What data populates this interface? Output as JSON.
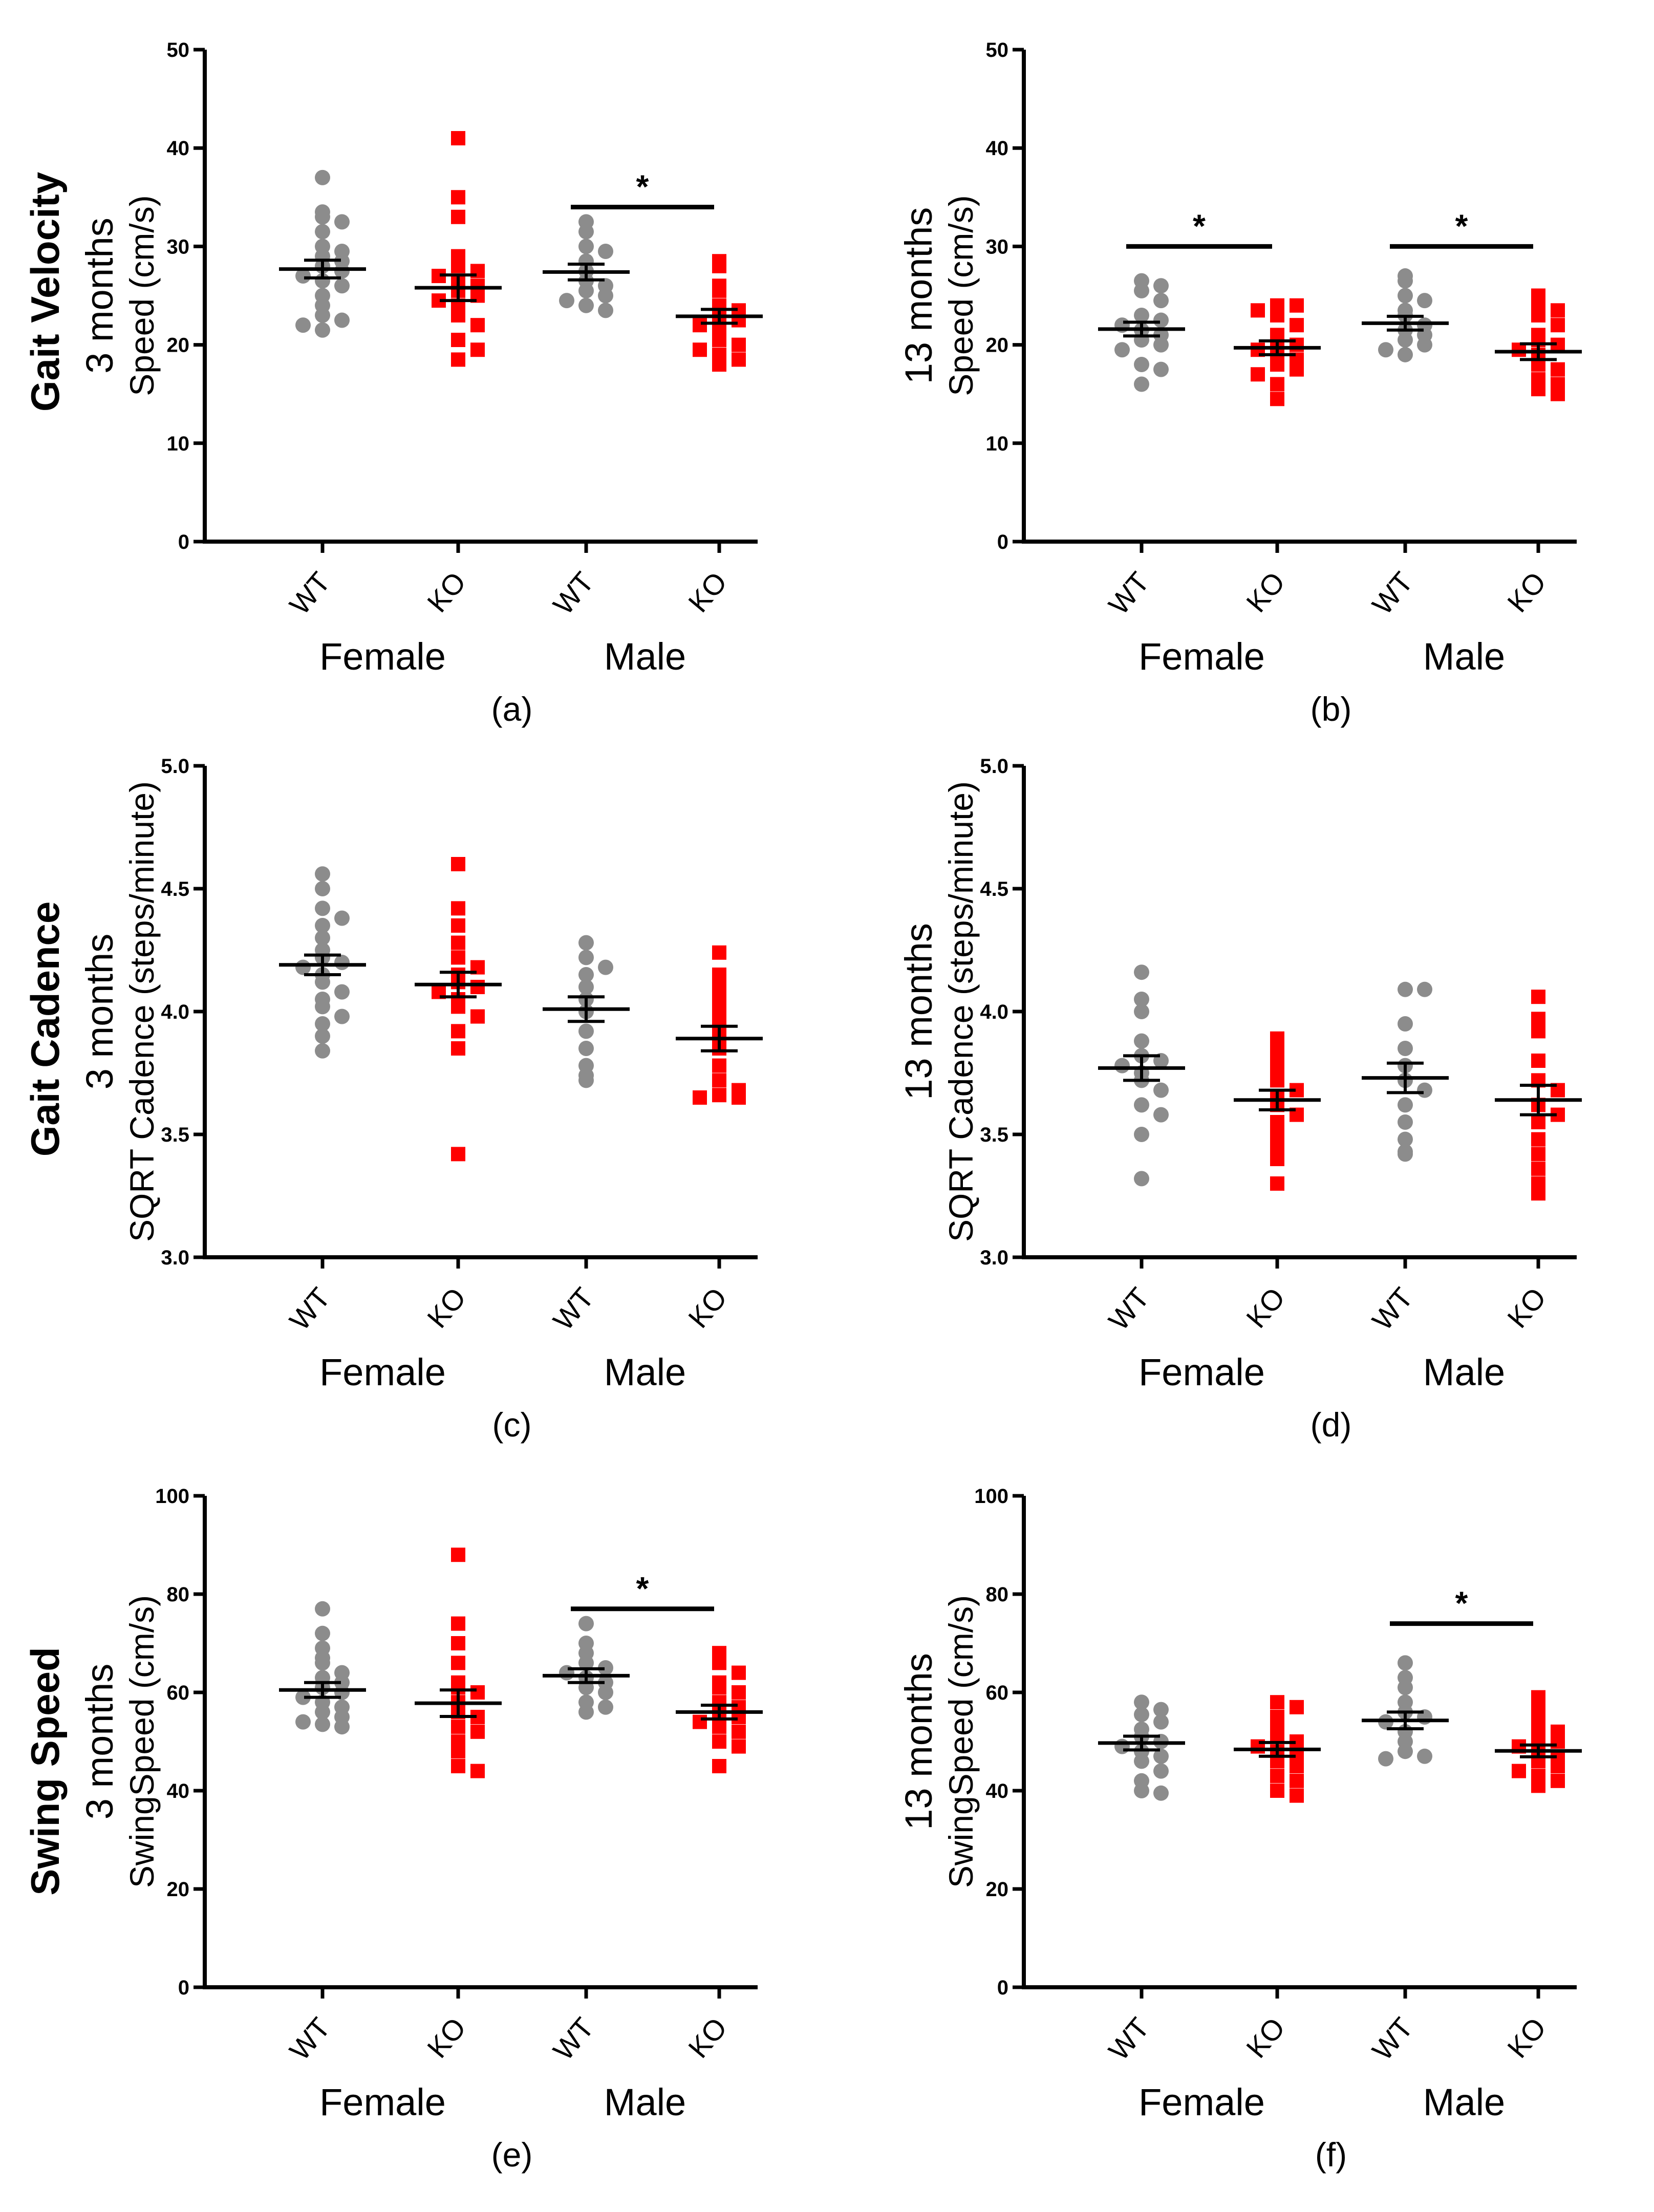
{
  "colors": {
    "wt": "#8c8c8c",
    "ko": "#ff0000",
    "axis": "#000000"
  },
  "row_titles": [
    "Gait Velocity",
    "Gait Cadence",
    "Swing Speed"
  ],
  "chart_data": [
    {
      "type": "scatter",
      "panel": "(a)",
      "row": 0,
      "col": 0,
      "title": "Gait Velocity",
      "age_label": "3 months",
      "ylabel": "Speed (cm/s)",
      "ylim": [
        0,
        50
      ],
      "yticks": [
        "0",
        "10",
        "20",
        "30",
        "40",
        "50"
      ],
      "categories": [
        "WT",
        "KO",
        "WT",
        "KO"
      ],
      "sex_labels": [
        "Female",
        "Male"
      ],
      "series": [
        {
          "name": "Female WT",
          "group": "WT",
          "mean": 27.7,
          "sem": 0.9,
          "values": [
            37.0,
            33.5,
            33.0,
            32.5,
            31.5,
            30.0,
            29.5,
            29.0,
            28.5,
            28.0,
            27.5,
            27.0,
            26.5,
            26.0,
            25.0,
            24.0,
            23.0,
            22.5,
            22.0,
            21.5
          ]
        },
        {
          "name": "Female KO",
          "group": "KO",
          "mean": 25.8,
          "sem": 1.3,
          "values": [
            41.0,
            35.0,
            33.0,
            29.0,
            28.0,
            27.5,
            27.0,
            26.5,
            26.0,
            25.5,
            25.0,
            24.5,
            24.0,
            23.0,
            22.0,
            20.5,
            19.5,
            18.5
          ]
        },
        {
          "name": "Male WT",
          "group": "WT",
          "mean": 27.4,
          "sem": 0.8,
          "values": [
            32.5,
            31.5,
            30.0,
            29.5,
            28.5,
            27.5,
            26.5,
            26.0,
            25.5,
            25.0,
            24.5,
            24.0,
            23.5
          ]
        },
        {
          "name": "Male KO",
          "group": "KO",
          "mean": 22.9,
          "sem": 0.7,
          "values": [
            28.5,
            28.0,
            26.0,
            25.5,
            24.0,
            23.5,
            23.0,
            22.5,
            22.0,
            21.5,
            20.5,
            20.0,
            19.5,
            19.0,
            18.5,
            18.0
          ]
        }
      ],
      "significance": [
        {
          "from": 2,
          "to": 3,
          "value": 34,
          "label": "*"
        }
      ]
    },
    {
      "type": "scatter",
      "panel": "(b)",
      "row": 0,
      "col": 1,
      "title": "",
      "age_label": "13 months",
      "ylabel": "Speed (cm/s)",
      "ylim": [
        0,
        50
      ],
      "yticks": [
        "0",
        "10",
        "20",
        "30",
        "40",
        "50"
      ],
      "categories": [
        "WT",
        "KO",
        "WT",
        "KO"
      ],
      "sex_labels": [
        "Female",
        "Male"
      ],
      "series": [
        {
          "name": "Female WT",
          "group": "WT",
          "mean": 21.6,
          "sem": 0.7,
          "values": [
            26.5,
            26.0,
            25.5,
            24.5,
            23.0,
            22.5,
            22.0,
            21.5,
            21.0,
            20.5,
            20.0,
            19.5,
            18.0,
            17.5,
            16.0
          ]
        },
        {
          "name": "Female KO",
          "group": "KO",
          "mean": 19.7,
          "sem": 0.7,
          "values": [
            24.0,
            24.0,
            23.5,
            23.0,
            22.0,
            21.0,
            20.5,
            20.0,
            19.5,
            19.0,
            18.5,
            18.0,
            17.5,
            17.0,
            16.0,
            14.5
          ]
        },
        {
          "name": "Male WT",
          "group": "WT",
          "mean": 22.2,
          "sem": 0.7,
          "values": [
            27.0,
            26.5,
            25.0,
            24.5,
            23.5,
            23.0,
            22.0,
            21.5,
            21.0,
            20.5,
            20.0,
            19.5,
            19.0
          ]
        },
        {
          "name": "Male KO",
          "group": "KO",
          "mean": 19.3,
          "sem": 0.8,
          "values": [
            25.0,
            24.0,
            23.5,
            23.0,
            22.0,
            21.0,
            20.5,
            20.0,
            19.5,
            19.0,
            18.0,
            17.5,
            16.5,
            16.0,
            15.5,
            15.0
          ]
        }
      ],
      "significance": [
        {
          "from": 0,
          "to": 1,
          "value": 30,
          "label": "*"
        },
        {
          "from": 2,
          "to": 3,
          "value": 30,
          "label": "*"
        }
      ]
    },
    {
      "type": "scatter",
      "panel": "(c)",
      "row": 1,
      "col": 0,
      "title": "Gait Cadence",
      "age_label": "3 months",
      "ylabel": "SQRT Cadence (steps/minute)",
      "ylim": [
        3.0,
        5.0
      ],
      "yticks": [
        "3.0",
        "3.5",
        "4.0",
        "4.5",
        "5.0"
      ],
      "categories": [
        "WT",
        "KO",
        "WT",
        "KO"
      ],
      "sex_labels": [
        "Female",
        "Male"
      ],
      "series": [
        {
          "name": "Female WT",
          "group": "WT",
          "mean": 4.19,
          "sem": 0.04,
          "values": [
            4.56,
            4.5,
            4.42,
            4.38,
            4.35,
            4.3,
            4.25,
            4.22,
            4.2,
            4.18,
            4.15,
            4.12,
            4.08,
            4.05,
            4.02,
            3.98,
            3.95,
            3.9,
            3.84
          ]
        },
        {
          "name": "Female KO",
          "group": "KO",
          "mean": 4.11,
          "sem": 0.05,
          "values": [
            4.6,
            4.42,
            4.35,
            4.28,
            4.22,
            4.18,
            4.15,
            4.12,
            4.1,
            4.08,
            4.05,
            4.02,
            3.98,
            3.92,
            3.85,
            3.42
          ]
        },
        {
          "name": "Male WT",
          "group": "WT",
          "mean": 4.01,
          "sem": 0.05,
          "values": [
            4.28,
            4.22,
            4.18,
            4.15,
            4.1,
            4.05,
            4.0,
            3.92,
            3.85,
            3.78,
            3.74,
            3.72
          ]
        },
        {
          "name": "Male KO",
          "group": "KO",
          "mean": 3.89,
          "sem": 0.05,
          "values": [
            4.24,
            4.15,
            4.1,
            4.05,
            4.0,
            3.95,
            3.9,
            3.85,
            3.78,
            3.72,
            3.68,
            3.66,
            3.65,
            3.65
          ]
        }
      ],
      "significance": []
    },
    {
      "type": "scatter",
      "panel": "(d)",
      "row": 1,
      "col": 1,
      "title": "",
      "age_label": "13 months",
      "ylabel": "SQRT Cadence (steps/minute)",
      "ylim": [
        3.0,
        5.0
      ],
      "yticks": [
        "3.0",
        "3.5",
        "4.0",
        "4.5",
        "5.0"
      ],
      "categories": [
        "WT",
        "KO",
        "WT",
        "KO"
      ],
      "sex_labels": [
        "Female",
        "Male"
      ],
      "series": [
        {
          "name": "Female WT",
          "group": "WT",
          "mean": 3.77,
          "sem": 0.05,
          "values": [
            4.16,
            4.05,
            4.0,
            3.88,
            3.82,
            3.8,
            3.78,
            3.75,
            3.72,
            3.68,
            3.62,
            3.58,
            3.5,
            3.32
          ]
        },
        {
          "name": "Female KO",
          "group": "KO",
          "mean": 3.64,
          "sem": 0.04,
          "values": [
            3.89,
            3.85,
            3.8,
            3.76,
            3.72,
            3.68,
            3.65,
            3.62,
            3.58,
            3.55,
            3.5,
            3.45,
            3.4,
            3.3
          ]
        },
        {
          "name": "Male WT",
          "group": "WT",
          "mean": 3.73,
          "sem": 0.06,
          "values": [
            4.09,
            4.09,
            3.95,
            3.85,
            3.78,
            3.72,
            3.68,
            3.62,
            3.55,
            3.48,
            3.43,
            3.42
          ]
        },
        {
          "name": "Male KO",
          "group": "KO",
          "mean": 3.64,
          "sem": 0.06,
          "values": [
            4.06,
            3.97,
            3.92,
            3.8,
            3.72,
            3.68,
            3.62,
            3.58,
            3.55,
            3.48,
            3.42,
            3.36,
            3.3,
            3.26
          ]
        }
      ],
      "significance": []
    },
    {
      "type": "scatter",
      "panel": "(e)",
      "row": 2,
      "col": 0,
      "title": "Swing Speed",
      "age_label": "3 months",
      "ylabel": "SwingSpeed (cm/s)",
      "ylim": [
        0,
        100
      ],
      "yticks": [
        "0",
        "20",
        "40",
        "60",
        "80",
        "100"
      ],
      "categories": [
        "WT",
        "KO",
        "WT",
        "KO"
      ],
      "sex_labels": [
        "Female",
        "Male"
      ],
      "series": [
        {
          "name": "Female WT",
          "group": "WT",
          "mean": 60.5,
          "sem": 1.5,
          "values": [
            77.0,
            72.0,
            69.0,
            67.0,
            66.0,
            64.0,
            63.0,
            62.0,
            61.0,
            60.0,
            59.0,
            58.0,
            57.0,
            56.0,
            55.0,
            54.0,
            53.5,
            53.0
          ]
        },
        {
          "name": "Female KO",
          "group": "KO",
          "mean": 57.8,
          "sem": 2.7,
          "values": [
            88.0,
            74.0,
            70.0,
            66.0,
            62.0,
            61.0,
            60.0,
            58.0,
            56.0,
            55.0,
            53.0,
            52.0,
            50.0,
            48.0,
            45.0,
            44.0
          ]
        },
        {
          "name": "Male WT",
          "group": "WT",
          "mean": 63.4,
          "sem": 1.4,
          "values": [
            74.0,
            70.0,
            68.0,
            66.0,
            65.0,
            64.0,
            63.0,
            62.0,
            61.0,
            60.0,
            58.0,
            57.0,
            56.0
          ]
        },
        {
          "name": "Male KO",
          "group": "KO",
          "mean": 56.0,
          "sem": 1.4,
          "values": [
            68.0,
            66.0,
            64.0,
            62.0,
            61.0,
            60.0,
            58.0,
            57.0,
            56.0,
            55.0,
            54.0,
            53.0,
            52.0,
            50.0,
            49.0,
            45.0
          ]
        }
      ],
      "significance": [
        {
          "from": 2,
          "to": 3,
          "value": 77,
          "label": "*"
        }
      ]
    },
    {
      "type": "scatter",
      "panel": "(f)",
      "row": 2,
      "col": 1,
      "title": "",
      "age_label": "13 months",
      "ylabel": "SwingSpeed (cm/s)",
      "ylim": [
        0,
        100
      ],
      "yticks": [
        "0",
        "20",
        "40",
        "60",
        "80",
        "100"
      ],
      "categories": [
        "WT",
        "KO",
        "WT",
        "KO"
      ],
      "sex_labels": [
        "Female",
        "Male"
      ],
      "series": [
        {
          "name": "Female WT",
          "group": "WT",
          "mean": 49.7,
          "sem": 1.4,
          "values": [
            58.0,
            56.5,
            55.5,
            54.0,
            52.5,
            51.0,
            50.0,
            49.0,
            48.0,
            47.0,
            46.0,
            44.0,
            42.0,
            40.0,
            39.5
          ]
        },
        {
          "name": "Female KO",
          "group": "KO",
          "mean": 48.4,
          "sem": 1.4,
          "values": [
            58.0,
            57.0,
            55.0,
            53.0,
            51.0,
            50.0,
            49.0,
            48.0,
            47.0,
            46.0,
            45.0,
            43.0,
            42.0,
            40.0,
            39.0
          ]
        },
        {
          "name": "Male WT",
          "group": "WT",
          "mean": 54.3,
          "sem": 1.7,
          "values": [
            66.0,
            63.0,
            61.0,
            58.0,
            56.0,
            55.0,
            54.0,
            52.0,
            50.0,
            48.0,
            47.0,
            46.5
          ]
        },
        {
          "name": "Male KO",
          "group": "KO",
          "mean": 48.1,
          "sem": 1.2,
          "values": [
            59.0,
            57.0,
            55.0,
            53.0,
            52.0,
            51.0,
            50.0,
            49.0,
            48.0,
            47.0,
            46.0,
            45.0,
            44.0,
            43.0,
            42.0,
            41.0
          ]
        }
      ],
      "significance": [
        {
          "from": 2,
          "to": 3,
          "value": 74,
          "label": "*"
        }
      ]
    }
  ]
}
